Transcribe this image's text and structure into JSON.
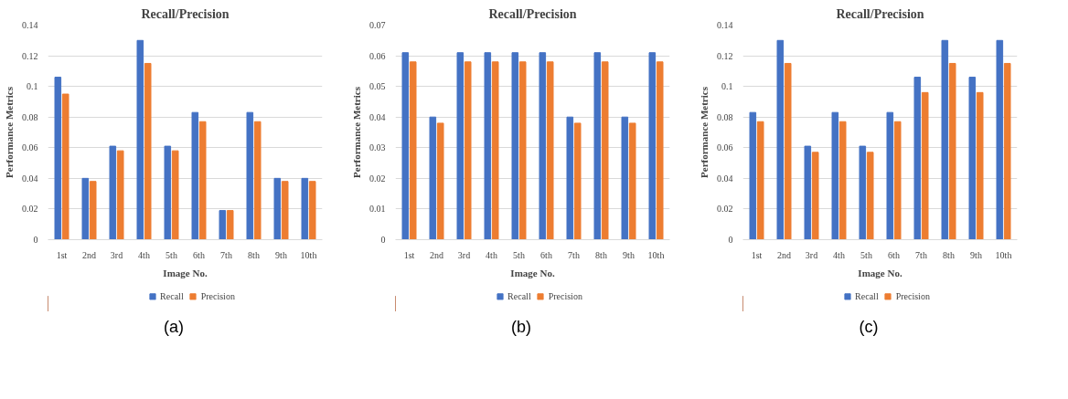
{
  "chart_data": [
    {
      "type": "bar",
      "title": "Recall/Precision",
      "xlabel": "Image No.",
      "ylabel": "Performance Metrics",
      "categories": [
        "1st",
        "2nd",
        "3rd",
        "4th",
        "5th",
        "6th",
        "7th",
        "8th",
        "9th",
        "10th"
      ],
      "series": [
        {
          "name": "Recall",
          "color": "#4472c4",
          "values": [
            0.106,
            0.04,
            0.061,
            0.13,
            0.061,
            0.083,
            0.019,
            0.083,
            0.04,
            0.04
          ]
        },
        {
          "name": "Precision",
          "color": "#ed7d31",
          "values": [
            0.095,
            0.038,
            0.058,
            0.115,
            0.058,
            0.077,
            0.019,
            0.077,
            0.038,
            0.038
          ]
        }
      ],
      "ylim": [
        0,
        0.14
      ],
      "yticks": [
        0,
        0.02,
        0.04,
        0.06,
        0.08,
        {
          "value": 0.1,
          "label": "0.1"
        },
        0.12,
        0.14
      ],
      "grid": "y",
      "legend": "bottom",
      "annotations": [
        "(a)"
      ]
    },
    {
      "type": "bar",
      "title": "Recall/Precision",
      "xlabel": "Image No.",
      "ylabel": "Performance Metrics",
      "categories": [
        "1st",
        "2nd",
        "3rd",
        "4th",
        "5th",
        "6th",
        "7th",
        "8th",
        "9th",
        "10th"
      ],
      "series": [
        {
          "name": "Recall",
          "color": "#4472c4",
          "values": [
            0.061,
            0.04,
            0.061,
            0.061,
            0.061,
            0.061,
            0.04,
            0.061,
            0.04,
            0.061
          ]
        },
        {
          "name": "Precision",
          "color": "#ed7d31",
          "values": [
            0.058,
            0.038,
            0.058,
            0.058,
            0.058,
            0.058,
            0.038,
            0.058,
            0.038,
            0.058
          ]
        }
      ],
      "ylim": [
        0,
        0.07
      ],
      "yticks": [
        0,
        0.01,
        0.02,
        0.03,
        0.04,
        0.05,
        0.06,
        0.07
      ],
      "grid": "y",
      "legend": "bottom",
      "annotations": [
        "(b)"
      ]
    },
    {
      "type": "bar",
      "title": "Recall/Precision",
      "xlabel": "Image No.",
      "ylabel": "Performance Metrics",
      "categories": [
        "1st",
        "2nd",
        "3rd",
        "4th",
        "5th",
        "6th",
        "7th",
        "8th",
        "9th",
        "10th"
      ],
      "series": [
        {
          "name": "Recall",
          "color": "#4472c4",
          "values": [
            0.083,
            0.13,
            0.061,
            0.083,
            0.061,
            0.083,
            0.106,
            0.13,
            0.106,
            0.13
          ]
        },
        {
          "name": "Precision",
          "color": "#ed7d31",
          "values": [
            0.077,
            0.115,
            0.057,
            0.077,
            0.057,
            0.077,
            0.096,
            0.115,
            0.096,
            0.115
          ]
        }
      ],
      "ylim": [
        0,
        0.14
      ],
      "yticks": [
        0,
        0.02,
        0.04,
        0.06,
        0.08,
        {
          "value": 0.1,
          "label": "0.1"
        },
        0.12,
        0.14
      ],
      "grid": "y",
      "legend": "bottom",
      "annotations": [
        "(c)"
      ]
    }
  ]
}
